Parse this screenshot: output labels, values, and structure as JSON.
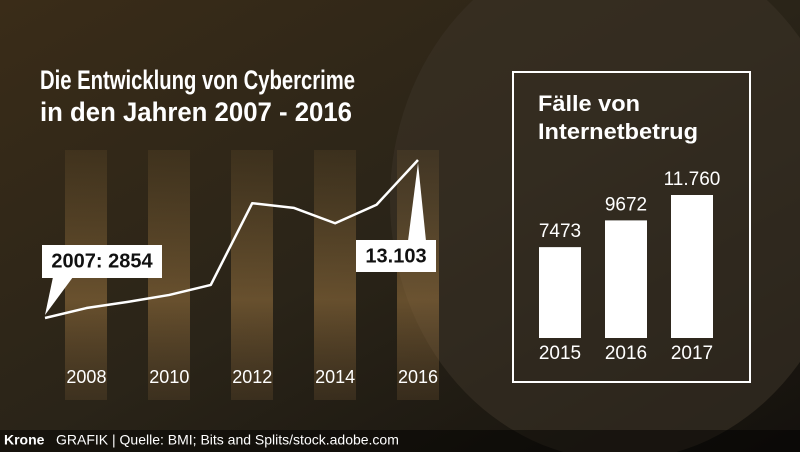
{
  "chart_data": [
    {
      "type": "line",
      "title": [
        "Die Entwicklung von Cybercrime",
        "in den Jahren 2007 - 2016"
      ],
      "x": [
        2007,
        2008,
        2009,
        2010,
        2011,
        2012,
        2013,
        2014,
        2015,
        2016
      ],
      "values": [
        2854,
        3500,
        3900,
        4350,
        5000,
        10300,
        10000,
        9000,
        10200,
        13103
      ],
      "value_labels": [
        "2007: 2854",
        null,
        null,
        null,
        null,
        null,
        null,
        null,
        null,
        "13.103"
      ],
      "color": "#ffffff",
      "xlim": [
        2007,
        2016
      ],
      "xticks": [
        2008,
        2010,
        2012,
        2014,
        2016
      ]
    },
    {
      "type": "bar",
      "title": [
        "Fälle von",
        "Internetbetrug"
      ],
      "categories": [
        "2015",
        "2016",
        "2017"
      ],
      "values": [
        7473,
        9672,
        11760
      ],
      "value_labels": [
        "7473",
        "9672",
        "11.760"
      ],
      "color": "#ffffff"
    }
  ],
  "footer": {
    "brand": "Krone",
    "text": "GRAFIK | Quelle: BMI; Bits and Splits/stock.adobe.com"
  }
}
